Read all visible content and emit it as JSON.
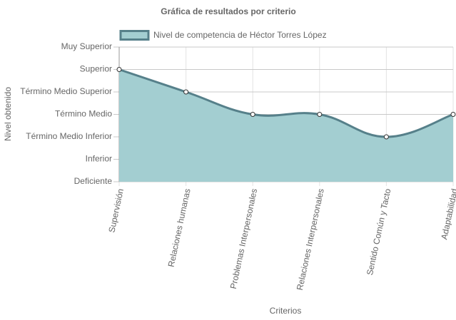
{
  "chart_data": {
    "type": "area",
    "title": "Gráfica de resultados por criterio",
    "x_label": "Criterios",
    "y_label": "Nivel obtenido",
    "categories": [
      "Supervisión",
      "Relaciones humanas",
      "Problemas Interpersonales",
      "Relaciones Interpersonales",
      "Sentido Común y Tacto",
      "Adaptabilidad"
    ],
    "series": [
      {
        "name": "Nivel de competencia de Héctor Torres López",
        "color": "#56808a",
        "fill": "#a3ced1",
        "values": [
          6,
          5,
          4,
          4,
          3,
          4
        ]
      }
    ],
    "ylim": [
      1,
      7
    ],
    "yticks": [
      {
        "value": 1,
        "label": "Deficiente"
      },
      {
        "value": 2,
        "label": "Inferior"
      },
      {
        "value": 3,
        "label": "Término Medio Inferior"
      },
      {
        "value": 4,
        "label": "Término Medio"
      },
      {
        "value": 5,
        "label": "Término Medio Superior"
      },
      {
        "value": 6,
        "label": "Superior"
      },
      {
        "value": 7,
        "label": "Muy Superior"
      }
    ],
    "grid": true
  }
}
